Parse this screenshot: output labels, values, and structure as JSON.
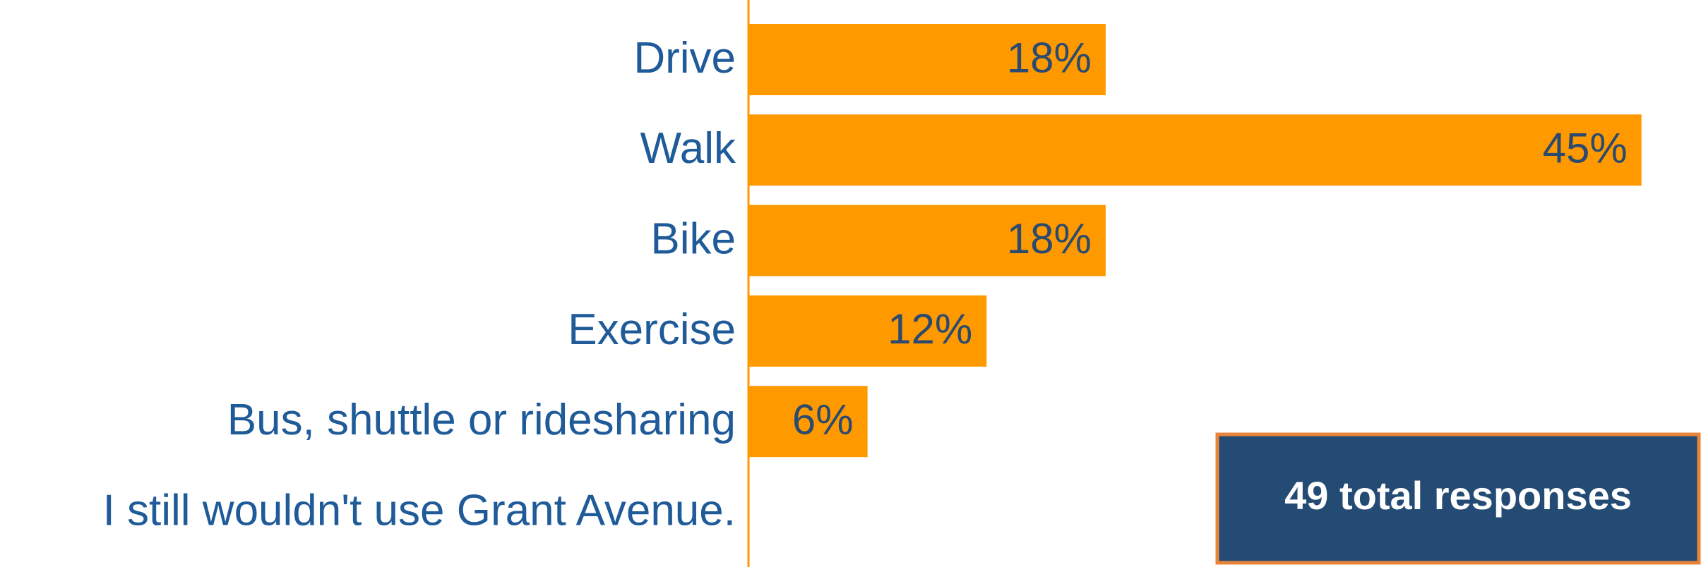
{
  "chart_data": {
    "type": "bar",
    "orientation": "horizontal",
    "categories": [
      "Drive",
      "Walk",
      "Bike",
      "Exercise",
      "Bus, shuttle or ridesharing",
      "I still wouldn't use Grant Avenue."
    ],
    "values": [
      18,
      45,
      18,
      12,
      6,
      null
    ],
    "value_labels": [
      "18%",
      "45%",
      "18%",
      "12%",
      "6%",
      null
    ],
    "color": "#ff9900",
    "xlim": [
      0,
      48
    ],
    "annotation": "49 total responses"
  }
}
